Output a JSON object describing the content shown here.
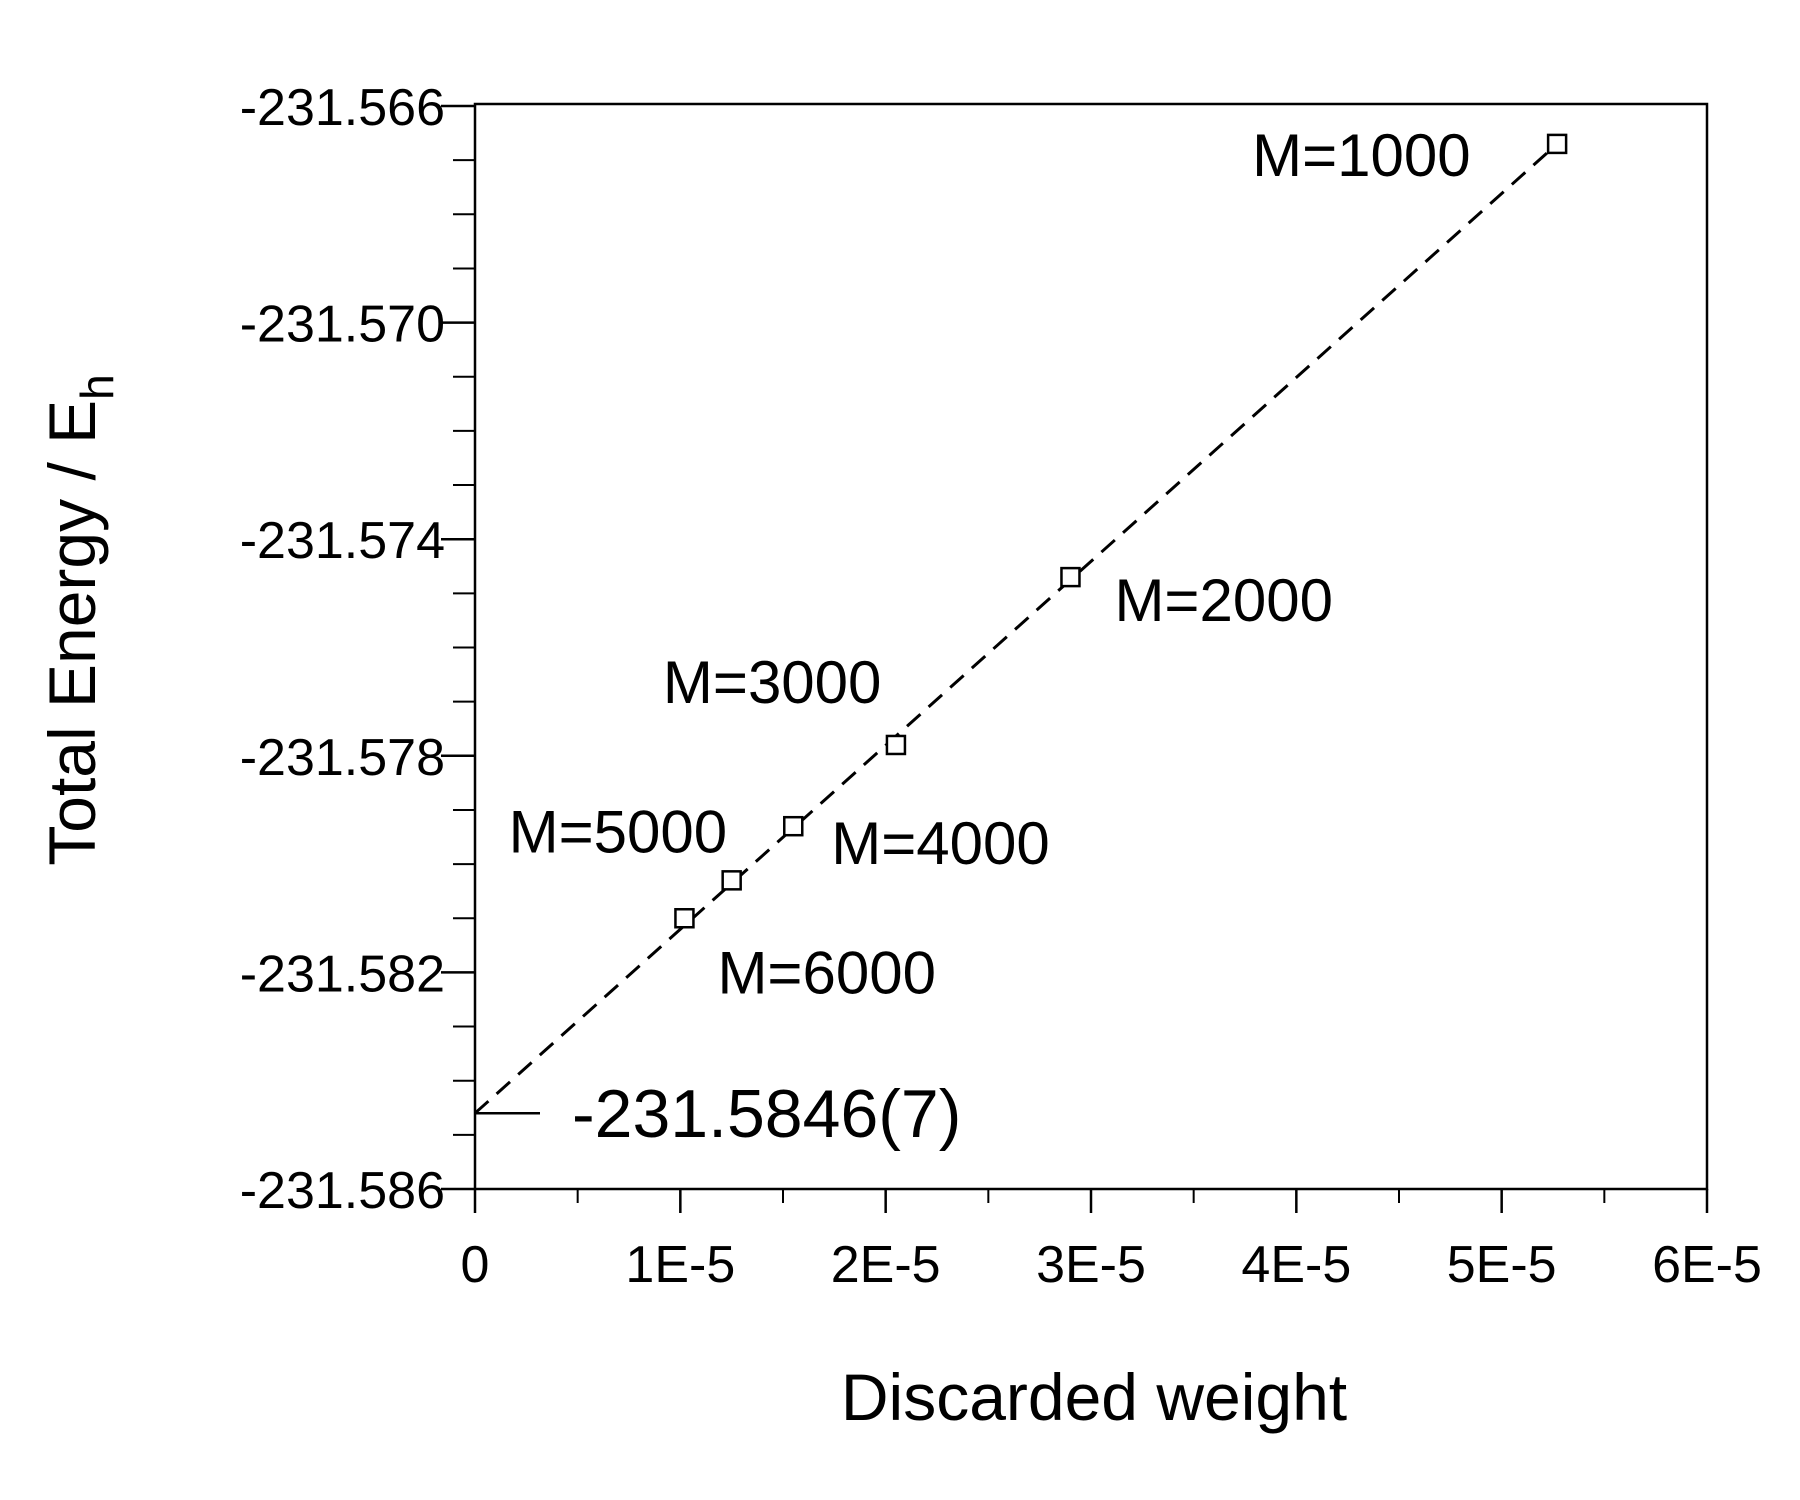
{
  "chart_data": {
    "type": "scatter",
    "title": "",
    "xlabel": "Discarded weight",
    "ylabel_main": "Total Energy / E",
    "ylabel_sub": "h",
    "xlim": [
      0,
      6e-05
    ],
    "ylim": [
      -231.586,
      -231.5655
    ],
    "grid": false,
    "legend": "none",
    "x_ticks": [
      {
        "value": 0,
        "label": "0"
      },
      {
        "value": 1e-05,
        "label": "1E-5"
      },
      {
        "value": 2e-05,
        "label": "2E-5"
      },
      {
        "value": 3e-05,
        "label": "3E-5"
      },
      {
        "value": 4e-05,
        "label": "4E-5"
      },
      {
        "value": 5e-05,
        "label": "5E-5"
      },
      {
        "value": 6e-05,
        "label": "6E-5"
      }
    ],
    "y_ticks": [
      {
        "value": -231.566,
        "label": "-231.566"
      },
      {
        "value": -231.57,
        "label": "-231.570"
      },
      {
        "value": -231.574,
        "label": "-231.574"
      },
      {
        "value": -231.578,
        "label": "-231.578"
      },
      {
        "value": -231.582,
        "label": "-231.582"
      },
      {
        "value": -231.586,
        "label": "-231.586"
      }
    ],
    "points": [
      {
        "label": "M=1000",
        "x": 5.27e-05,
        "y": -231.5667
      },
      {
        "label": "M=2000",
        "x": 2.9e-05,
        "y": -231.5747
      },
      {
        "label": "M=3000",
        "x": 2.05e-05,
        "y": -231.5778
      },
      {
        "label": "M=4000",
        "x": 1.55e-05,
        "y": -231.5793
      },
      {
        "label": "M=5000",
        "x": 1.25e-05,
        "y": -231.5803
      },
      {
        "label": "M=6000",
        "x": 1.02e-05,
        "y": -231.581
      }
    ],
    "fit_line": {
      "style": "dashed",
      "from": {
        "x": 0,
        "y": -231.5846
      },
      "to": {
        "x": 5.27e-05,
        "y": -231.5667
      }
    },
    "extrapolation": {
      "value": -231.5846,
      "label": "-231.5846(7)"
    }
  }
}
